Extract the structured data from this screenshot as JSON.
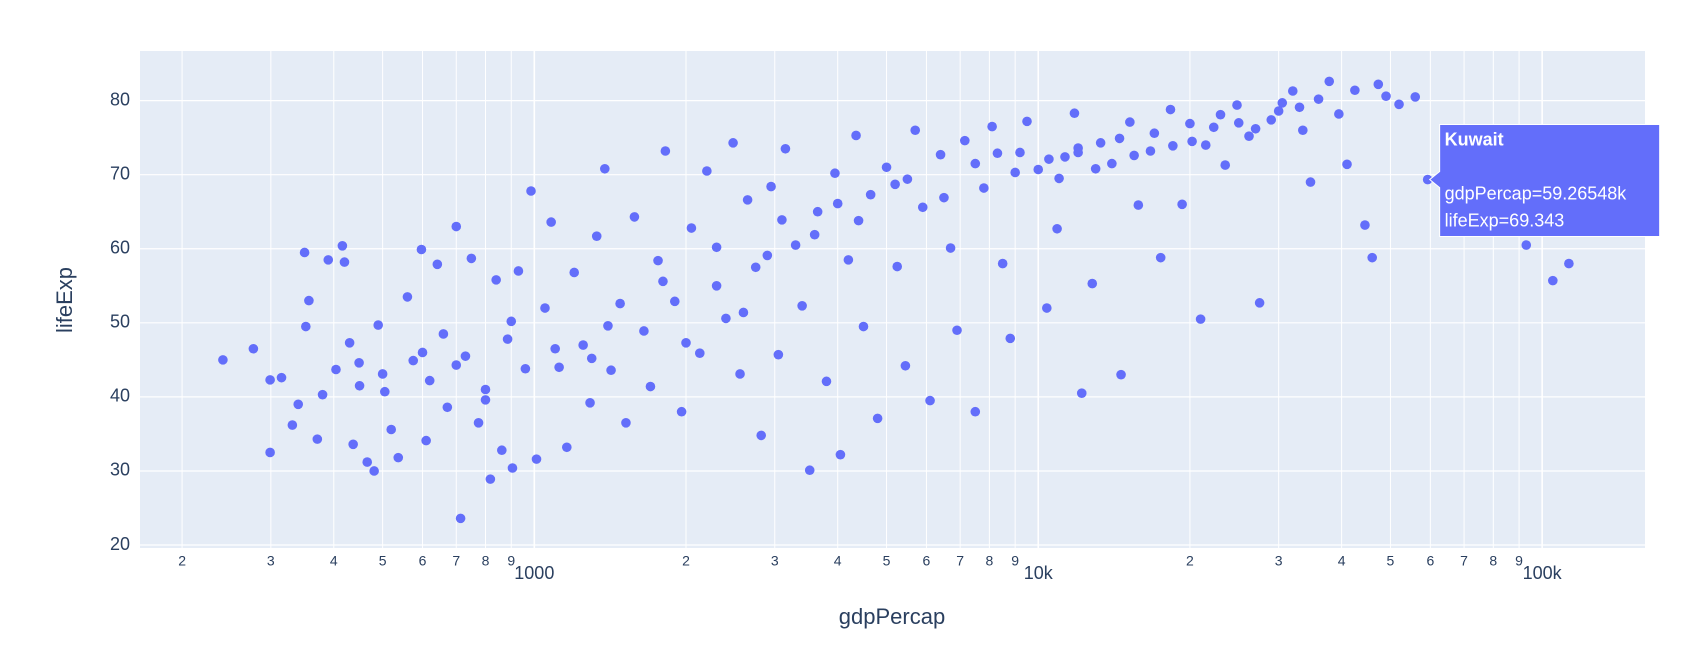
{
  "chart_data": {
    "type": "scatter",
    "x_label": "gdpPercap",
    "y_label": "lifeExp",
    "x_log": true,
    "grid": true,
    "color": "#636efa",
    "xlim": [
      165,
      160000
    ],
    "ylim": [
      19.6,
      86.7
    ],
    "xticks": [
      {
        "value": 200,
        "label": "2"
      },
      {
        "value": 300,
        "label": "3"
      },
      {
        "value": 400,
        "label": "4"
      },
      {
        "value": 500,
        "label": "5"
      },
      {
        "value": 600,
        "label": "6"
      },
      {
        "value": 700,
        "label": "7"
      },
      {
        "value": 800,
        "label": "8"
      },
      {
        "value": 900,
        "label": "9"
      },
      1000,
      {
        "value": 2000,
        "label": "2"
      },
      {
        "value": 3000,
        "label": "3"
      },
      {
        "value": 4000,
        "label": "4"
      },
      {
        "value": 5000,
        "label": "5"
      },
      {
        "value": 6000,
        "label": "6"
      },
      {
        "value": 7000,
        "label": "7"
      },
      {
        "value": 8000,
        "label": "8"
      },
      {
        "value": 9000,
        "label": "9"
      },
      {
        "value": 10000,
        "label": "10k"
      },
      {
        "value": 20000,
        "label": "2"
      },
      {
        "value": 30000,
        "label": "3"
      },
      {
        "value": 40000,
        "label": "4"
      },
      {
        "value": 50000,
        "label": "5"
      },
      {
        "value": 60000,
        "label": "6"
      },
      {
        "value": 70000,
        "label": "7"
      },
      {
        "value": 80000,
        "label": "8"
      },
      {
        "value": 90000,
        "label": "9"
      },
      {
        "value": 100000,
        "label": "100k"
      }
    ],
    "yticks": [
      20,
      30,
      40,
      50,
      60,
      70,
      80
    ],
    "x": [
      241,
      277,
      299,
      299,
      315,
      331,
      340,
      350,
      352,
      357,
      371,
      380,
      390,
      404,
      416,
      420,
      430,
      437,
      449,
      466,
      481,
      490,
      505,
      520,
      537,
      560,
      575,
      597,
      610,
      620,
      642,
      660,
      672,
      700,
      714,
      730,
      750,
      775,
      800,
      818,
      840,
      862,
      885,
      905,
      930,
      960,
      985,
      1010,
      1050,
      1080,
      1120,
      1160,
      1200,
      1250,
      1290,
      1330,
      1380,
      1420,
      1480,
      1520,
      1580,
      1650,
      1700,
      1760,
      1820,
      1900,
      1960,
      2050,
      2130,
      2200,
      2300,
      2400,
      2480,
      2560,
      2650,
      2750,
      2820,
      2950,
      3050,
      3150,
      3300,
      3400,
      3520,
      3650,
      3800,
      3950,
      4050,
      4200,
      4350,
      4500,
      4650,
      4800,
      5000,
      5250,
      5450,
      5700,
      5900,
      6100,
      6400,
      6700,
      6900,
      7150,
      7500,
      7800,
      8100,
      8500,
      8800,
      9200,
      9500,
      10000,
      10400,
      10900,
      11300,
      11800,
      12200,
      12800,
      13300,
      14000,
      14600,
      15200,
      15800,
      16700,
      17500,
      18300,
      19300,
      20200,
      21000,
      22300,
      23500,
      24800,
      26200,
      27500,
      29000,
      30500,
      32000,
      33500,
      34700,
      36000,
      37800,
      39500,
      41000,
      42500,
      44500,
      46000,
      47300,
      49000,
      52000,
      56000,
      59265.48,
      93000,
      105000,
      113000,
      10500,
      11000,
      12000,
      13000,
      14500,
      15500,
      17000,
      18500,
      20000,
      21500,
      23000,
      25000,
      27000,
      30000,
      33000,
      7500,
      8300,
      9000,
      6500,
      5200,
      4400,
      3600,
      2900,
      2300,
      1800,
      1400,
      1100,
      900,
      700,
      600,
      500,
      450,
      800,
      1300,
      2000,
      2600,
      3100,
      4000,
      5500,
      12000
    ],
    "values": [
      45,
      46.5,
      42.3,
      32.5,
      42.6,
      36.2,
      39,
      59.5,
      49.5,
      53,
      34.3,
      40.3,
      58.5,
      43.7,
      60.4,
      58.2,
      47.3,
      33.6,
      44.6,
      31.2,
      30,
      49.7,
      40.7,
      35.6,
      31.8,
      53.5,
      44.9,
      59.9,
      34.1,
      42.2,
      57.9,
      48.5,
      38.6,
      63,
      23.6,
      45.5,
      58.7,
      36.5,
      41,
      28.9,
      55.8,
      32.8,
      47.8,
      30.4,
      57,
      43.8,
      67.8,
      31.6,
      52,
      63.6,
      44,
      33.2,
      56.8,
      47,
      39.2,
      61.7,
      70.8,
      43.6,
      52.6,
      36.5,
      64.3,
      48.9,
      41.4,
      58.4,
      73.2,
      52.9,
      38,
      62.8,
      45.9,
      70.5,
      55,
      50.6,
      74.3,
      43.1,
      66.6,
      57.5,
      34.8,
      68.4,
      45.7,
      73.5,
      60.5,
      52.3,
      30.1,
      65,
      42.1,
      70.2,
      32.2,
      58.5,
      75.3,
      49.5,
      67.3,
      37.1,
      71,
      57.6,
      44.2,
      76,
      65.6,
      39.5,
      72.7,
      60.1,
      49,
      74.6,
      38,
      68.2,
      76.5,
      58,
      47.9,
      73,
      77.2,
      70.7,
      52,
      62.7,
      72.4,
      78.3,
      40.5,
      55.3,
      74.3,
      71.5,
      43,
      77.1,
      65.9,
      73.2,
      58.8,
      78.8,
      66,
      74.5,
      50.5,
      76.4,
      71.3,
      79.4,
      75.2,
      52.7,
      77.4,
      79.7,
      81.3,
      76,
      69,
      80.2,
      82.6,
      78.2,
      71.4,
      81.4,
      63.2,
      58.8,
      82.2,
      80.6,
      79.5,
      80.5,
      69.343,
      60.5,
      55.7,
      58,
      72.1,
      69.5,
      73.6,
      70.8,
      74.9,
      72.6,
      75.6,
      73.9,
      76.9,
      74,
      78.1,
      77,
      76.2,
      78.6,
      79.1,
      71.5,
      72.9,
      70.3,
      66.9,
      68.7,
      63.8,
      61.9,
      59.1,
      60.2,
      55.6,
      49.6,
      46.5,
      50.2,
      44.3,
      46,
      43.1,
      41.5,
      39.6,
      45.2,
      47.3,
      51.4,
      63.9,
      66.1,
      69.4,
      73
    ],
    "hover": {
      "title": "Kuwait",
      "x": 59265.48,
      "y": 69.343,
      "lines": [
        "gdpPercap=59.26548k",
        "lifeExp=69.343"
      ]
    }
  }
}
